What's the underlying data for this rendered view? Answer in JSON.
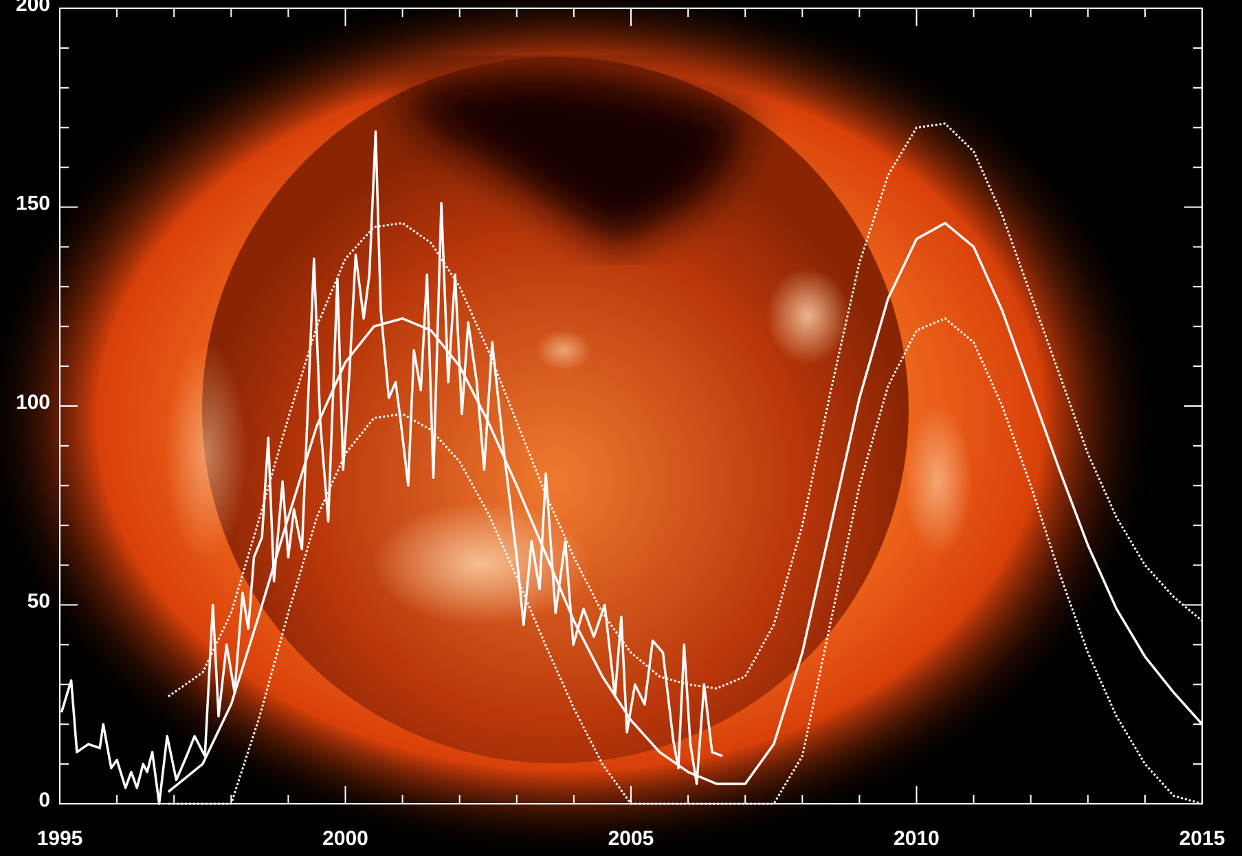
{
  "chart_data": {
    "type": "line",
    "xlim": [
      1995,
      2015
    ],
    "xticks": [
      1995,
      2000,
      2005,
      2010,
      2015
    ],
    "xminorticks": [
      1996,
      1997,
      1998,
      1999,
      2001,
      2002,
      2003,
      2004,
      2006,
      2007,
      2008,
      2009,
      2011,
      2012,
      2013,
      2014
    ],
    "ylim": [
      0,
      200
    ],
    "yticks": [
      0,
      50,
      100,
      150,
      200
    ],
    "yminorticks": [
      10,
      20,
      30,
      40,
      60,
      70,
      80,
      90,
      110,
      120,
      130,
      140,
      160,
      170,
      180,
      190
    ],
    "axis_color": "#ffffff",
    "series": [
      {
        "color": "#ffffff",
        "style": "solid",
        "x": [
          1995.03,
          1995.2,
          1995.3,
          1995.5,
          1995.7,
          1995.76,
          1995.9,
          1996.0,
          1996.15,
          1996.25,
          1996.35,
          1996.46,
          1996.53,
          1996.62,
          1996.74,
          1996.88,
          1997.04,
          1997.22,
          1997.36,
          1997.54,
          1997.68,
          1997.78,
          1997.92,
          1998.06,
          1998.2,
          1998.3,
          1998.4,
          1998.54,
          1998.65,
          1998.75,
          1998.9,
          1999.0,
          1999.1,
          1999.24,
          1999.45,
          1999.56,
          1999.7,
          1999.86,
          1999.96,
          2000.07,
          2000.18,
          2000.32,
          2000.42,
          2000.53,
          2000.62,
          2000.76,
          2000.88,
          2000.97,
          2001.1,
          2001.2,
          2001.32,
          2001.43,
          2001.54,
          2001.68,
          2001.8,
          2001.92,
          2002.04,
          2002.15,
          2002.3,
          2002.43,
          2002.57,
          2002.78,
          2003.0,
          2003.12,
          2003.26,
          2003.4,
          2003.51,
          2003.68,
          2003.85,
          2003.99,
          2004.17,
          2004.35,
          2004.54,
          2004.72,
          2004.83,
          2004.93,
          2005.07,
          2005.24,
          2005.38,
          2005.56,
          2005.74,
          2005.83,
          2005.93,
          2006.04,
          2006.15,
          2006.28,
          2006.42,
          2006.6
        ],
        "values": [
          23,
          31,
          13,
          15,
          14,
          20,
          9,
          11,
          4,
          8,
          4,
          10,
          8,
          13,
          0,
          17,
          6,
          12,
          17,
          12,
          50,
          22,
          40,
          28,
          53,
          44,
          62,
          67,
          92,
          56,
          81,
          62,
          74,
          64,
          137,
          96,
          71,
          132,
          84,
          108,
          138,
          122,
          133,
          169,
          124,
          102,
          106,
          96,
          80,
          114,
          104,
          133,
          82,
          151,
          106,
          133,
          98,
          121,
          106,
          84,
          116,
          88,
          62,
          45,
          66,
          54,
          83,
          48,
          66,
          40,
          49,
          42,
          50,
          27,
          47,
          18,
          30,
          25,
          41,
          38,
          16,
          9,
          40,
          15,
          5,
          30,
          13,
          12
        ]
      },
      {
        "color": "#ffffff",
        "style": "solid",
        "x": [
          1996.9,
          1997.5,
          1998,
          1998.5,
          1999,
          1999.5,
          2000,
          2000.5,
          2001,
          2001.5,
          2002,
          2002.5,
          2003,
          2003.5,
          2004,
          2004.5,
          2005,
          2005.5,
          2006,
          2006.5,
          2007,
          2007.5,
          2008,
          2008.5,
          2009,
          2009.5,
          2010,
          2010.5,
          2011,
          2011.5,
          2012,
          2012.5,
          2013,
          2013.5,
          2014,
          2014.5,
          2015
        ],
        "values": [
          3,
          10,
          25,
          48,
          72,
          95,
          111,
          120,
          122,
          119,
          110,
          96,
          80,
          63,
          46,
          32,
          21,
          13,
          8,
          5,
          5,
          15,
          38,
          70,
          102,
          127,
          142,
          146,
          140,
          124,
          104,
          84,
          65,
          49,
          37,
          28,
          20
        ]
      },
      {
        "color": "#ffffff",
        "style": "dotted",
        "x": [
          1996.9,
          1997.5,
          1998,
          1998.5,
          1999,
          1999.5,
          2000,
          2000.5,
          2001,
          2001.5,
          2002,
          2002.5,
          2003,
          2003.5,
          2004,
          2004.5,
          2005,
          2005.5,
          2006,
          2006.5,
          2007,
          2007.5,
          2008,
          2008.5,
          2009,
          2009.5,
          2010,
          2010.5,
          2011,
          2011.5,
          2012,
          2012.5,
          2013,
          2013.5,
          2014,
          2014.5,
          2015
        ],
        "values": [
          27,
          33,
          48,
          72,
          97,
          120,
          137,
          145,
          146,
          141,
          130,
          114,
          96,
          78,
          62,
          48,
          38,
          32,
          30,
          29,
          32,
          45,
          70,
          104,
          136,
          158,
          170,
          171,
          164,
          148,
          128,
          108,
          88,
          72,
          60,
          52,
          46
        ]
      },
      {
        "color": "#ffffff",
        "style": "dotted",
        "x": [
          1996.9,
          1997.5,
          1998,
          1998.5,
          1999,
          1999.5,
          2000,
          2000.5,
          2001,
          2001.5,
          2002,
          2002.5,
          2003,
          2003.5,
          2004,
          2004.5,
          2005,
          2005.5,
          2006,
          2006.5,
          2007,
          2007.5,
          2008,
          2008.5,
          2009,
          2009.5,
          2010,
          2010.5,
          2011,
          2011.5,
          2012,
          2012.5,
          2013,
          2013.5,
          2014,
          2014.5,
          2015
        ],
        "values": [
          0,
          0,
          0,
          22,
          48,
          72,
          88,
          97,
          98,
          94,
          86,
          73,
          57,
          40,
          24,
          10,
          0,
          0,
          0,
          0,
          0,
          0,
          12,
          46,
          80,
          105,
          119,
          122,
          116,
          100,
          80,
          58,
          38,
          22,
          10,
          2,
          0
        ]
      }
    ]
  }
}
